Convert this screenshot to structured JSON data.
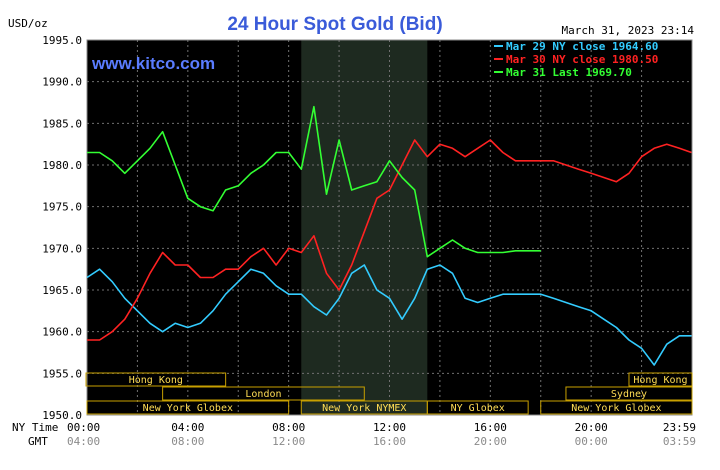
{
  "chart_data": {
    "type": "line",
    "title": "24 Hour Spot Gold (Bid)",
    "timestamp": "March 31, 2023 23:14",
    "website": "www.kitco.com",
    "y_unit": "USD/oz",
    "ylim": [
      1950,
      1995
    ],
    "y_ticks": [
      "1995.0",
      "1990.0",
      "1985.0",
      "1980.0",
      "1975.0",
      "1970.0",
      "1965.0",
      "1960.0",
      "1955.0",
      "1950.0"
    ],
    "x_axis_label_ny": "NY Time",
    "x_axis_label_gmt": "GMT",
    "ny_time_ticks": [
      "00:00",
      "04:00",
      "08:00",
      "12:00",
      "16:00",
      "20:00",
      "23:59"
    ],
    "gmt_ticks": [
      "04:00",
      "08:00",
      "12:00",
      "16:00",
      "20:00",
      "00:00",
      "03:59"
    ],
    "grid": true,
    "shaded_session": [
      8.5,
      13.5
    ],
    "colors": {
      "background": "#000000",
      "grid": "#707070",
      "shade": "#1e2a20",
      "axis_text": "#000000",
      "title": "#3a5bd9",
      "website": "#5a7cff",
      "mar29": "#33ccff",
      "mar30": "#ff2222",
      "mar31": "#33ff33",
      "session_box": "#c8a000",
      "session_text": "#ffdd55"
    },
    "series": [
      {
        "name": "Mar 29 NY close 1964.60",
        "color_key": "mar29",
        "x": [
          0,
          0.5,
          1,
          1.5,
          2,
          2.5,
          3,
          3.5,
          4,
          4.5,
          5,
          5.5,
          6,
          6.5,
          7,
          7.5,
          8,
          8.5,
          9,
          9.5,
          10,
          10.5,
          11,
          11.5,
          12,
          12.5,
          13,
          13.5,
          14,
          14.5,
          15,
          15.5,
          16,
          16.5,
          17,
          17.5,
          18,
          18.5,
          19,
          19.5,
          20,
          20.5,
          21,
          21.5,
          22,
          22.5,
          23,
          23.5,
          23.98
        ],
        "values": [
          1966.5,
          1967.5,
          1966,
          1964,
          1962.5,
          1961,
          1960,
          1961,
          1960.5,
          1961,
          1962.5,
          1964.5,
          1966,
          1967.5,
          1967,
          1965.5,
          1964.5,
          1964.5,
          1963,
          1962,
          1964,
          1967,
          1968,
          1965,
          1964,
          1961.5,
          1964,
          1967.5,
          1968,
          1967,
          1964,
          1963.5,
          1964,
          1964.5,
          1964.5,
          1964.5,
          1964.5,
          1964,
          1963.5,
          1963,
          1962.5,
          1961.5,
          1960.5,
          1959,
          1958,
          1956,
          1958.5,
          1959.5,
          1959.5
        ]
      },
      {
        "name": "Mar 30 NY close 1980.50",
        "color_key": "mar30",
        "x": [
          0,
          0.5,
          1,
          1.5,
          2,
          2.5,
          3,
          3.5,
          4,
          4.5,
          5,
          5.5,
          6,
          6.5,
          7,
          7.5,
          8,
          8.5,
          9,
          9.5,
          10,
          10.5,
          11,
          11.5,
          12,
          12.5,
          13,
          13.5,
          14,
          14.5,
          15,
          15.5,
          16,
          16.5,
          17,
          17.5,
          18,
          18.5,
          19,
          19.5,
          20,
          20.5,
          21,
          21.5,
          22,
          22.5,
          23,
          23.5,
          23.98
        ],
        "values": [
          1959,
          1959,
          1960,
          1961.5,
          1964,
          1967,
          1969.5,
          1968,
          1968,
          1966.5,
          1966.5,
          1967.5,
          1967.5,
          1969,
          1970,
          1968,
          1970,
          1969.5,
          1971.5,
          1967,
          1965,
          1968,
          1972,
          1976,
          1977,
          1980,
          1983,
          1981,
          1982.5,
          1982,
          1981,
          1982,
          1983,
          1981.5,
          1980.5,
          1980.5,
          1980.5,
          1980.5,
          1980,
          1979.5,
          1979,
          1978.5,
          1978,
          1979,
          1981,
          1982,
          1982.5,
          1982,
          1981.5
        ]
      },
      {
        "name": "Mar 31 Last 1969.70",
        "color_key": "mar31",
        "x": [
          0,
          0.5,
          1,
          1.5,
          2,
          2.5,
          3,
          3.5,
          4,
          4.5,
          5,
          5.5,
          6,
          6.5,
          7,
          7.5,
          8,
          8.5,
          9,
          9.5,
          10,
          10.5,
          11,
          11.5,
          12,
          12.5,
          13,
          13.5,
          14,
          14.5,
          15,
          15.5,
          16,
          16.5,
          17,
          17.5,
          18
        ],
        "values": [
          1981.5,
          1981.5,
          1980.5,
          1979,
          1980.5,
          1982,
          1984,
          1980,
          1976,
          1975,
          1974.5,
          1977,
          1977.5,
          1979,
          1980,
          1981.5,
          1981.5,
          1979.5,
          1987,
          1976.5,
          1983,
          1977,
          1977.5,
          1978,
          1980.5,
          1978.5,
          1977,
          1969,
          1970,
          1971,
          1970,
          1969.5,
          1969.5,
          1969.5,
          1969.7,
          1969.7,
          1969.7
        ]
      }
    ],
    "session_rows": [
      {
        "label": "Hong Kong",
        "x0": -0.5,
        "x1": 5.5,
        "row": 0
      },
      {
        "label": "Hong Kong",
        "x0": 21.5,
        "x1": 24.5,
        "row": 0
      },
      {
        "label": "London",
        "x0": 3,
        "x1": 11,
        "row": 1
      },
      {
        "label": "Sydney",
        "x0": 19,
        "x1": 24.5,
        "row": 1
      },
      {
        "label": "New York Globex",
        "x0": 0,
        "x1": 8,
        "row": 2
      },
      {
        "label": "New York NYMEX",
        "x0": 8.5,
        "x1": 13.5,
        "row": 2
      },
      {
        "label": "NY Globex",
        "x0": 13.5,
        "x1": 17.5,
        "row": 2
      },
      {
        "label": "New York Globex",
        "x0": 18,
        "x1": 24.5,
        "row": 2
      }
    ]
  }
}
